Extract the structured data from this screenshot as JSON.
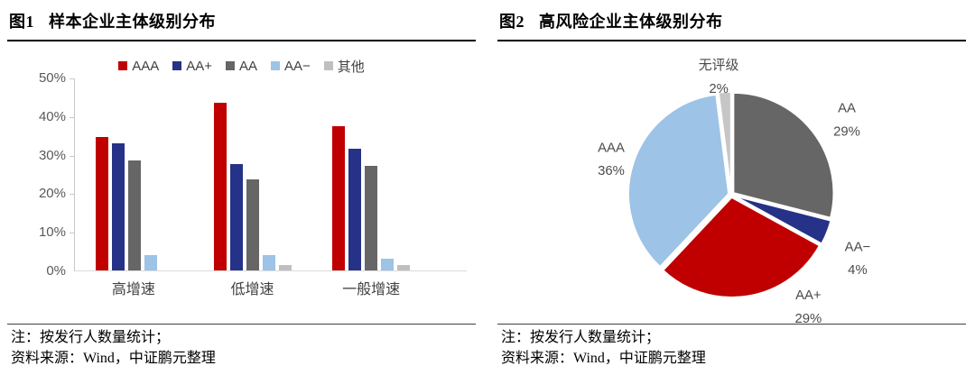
{
  "panels": [
    {
      "title_prefix": "图1",
      "title": "样本企业主体级别分布",
      "note1": "注：按发行人数量统计；",
      "note2": "资料来源：Wind，中证鹏元整理"
    },
    {
      "title_prefix": "图2",
      "title": "高风险企业主体级别分布",
      "note1": "注：按发行人数量统计；",
      "note2": "资料来源：Wind，中证鹏元整理"
    }
  ],
  "chart_data": [
    {
      "type": "bar",
      "title": "样本企业主体级别分布",
      "categories": [
        "高增速",
        "低增速",
        "一般增速"
      ],
      "series": [
        {
          "name": "AAA",
          "color": "#c00000",
          "values": [
            34.5,
            43.5,
            37.5
          ]
        },
        {
          "name": "AA+",
          "color": "#263287",
          "values": [
            33.0,
            27.5,
            31.5
          ]
        },
        {
          "name": "AA",
          "color": "#666666",
          "values": [
            28.5,
            23.5,
            27.0
          ]
        },
        {
          "name": "AA−",
          "color": "#9dc3e6",
          "values": [
            4.0,
            4.0,
            3.0
          ]
        },
        {
          "name": "其他",
          "color": "#bfbfbf",
          "values": [
            0.0,
            1.5,
            1.5
          ]
        }
      ],
      "ylim": [
        0,
        50
      ],
      "yticks": [
        0,
        10,
        20,
        30,
        40,
        50
      ],
      "ytick_suffix": "%",
      "grid": false,
      "legend_position": "top"
    },
    {
      "type": "pie",
      "title": "高风险企业主体级别分布",
      "start_angle": "top",
      "direction": "clockwise",
      "slices": [
        {
          "name": "AA",
          "pct": 29,
          "color": "#666666"
        },
        {
          "name": "AA−",
          "pct": 4,
          "color": "#263287"
        },
        {
          "name": "AA+",
          "pct": 29,
          "color": "#c00000"
        },
        {
          "name": "AAA",
          "pct": 36,
          "color": "#9dc3e6"
        },
        {
          "name": "无评级",
          "pct": 2,
          "color": "#c6c6c6"
        }
      ],
      "label_format": "name newline pct%"
    }
  ]
}
